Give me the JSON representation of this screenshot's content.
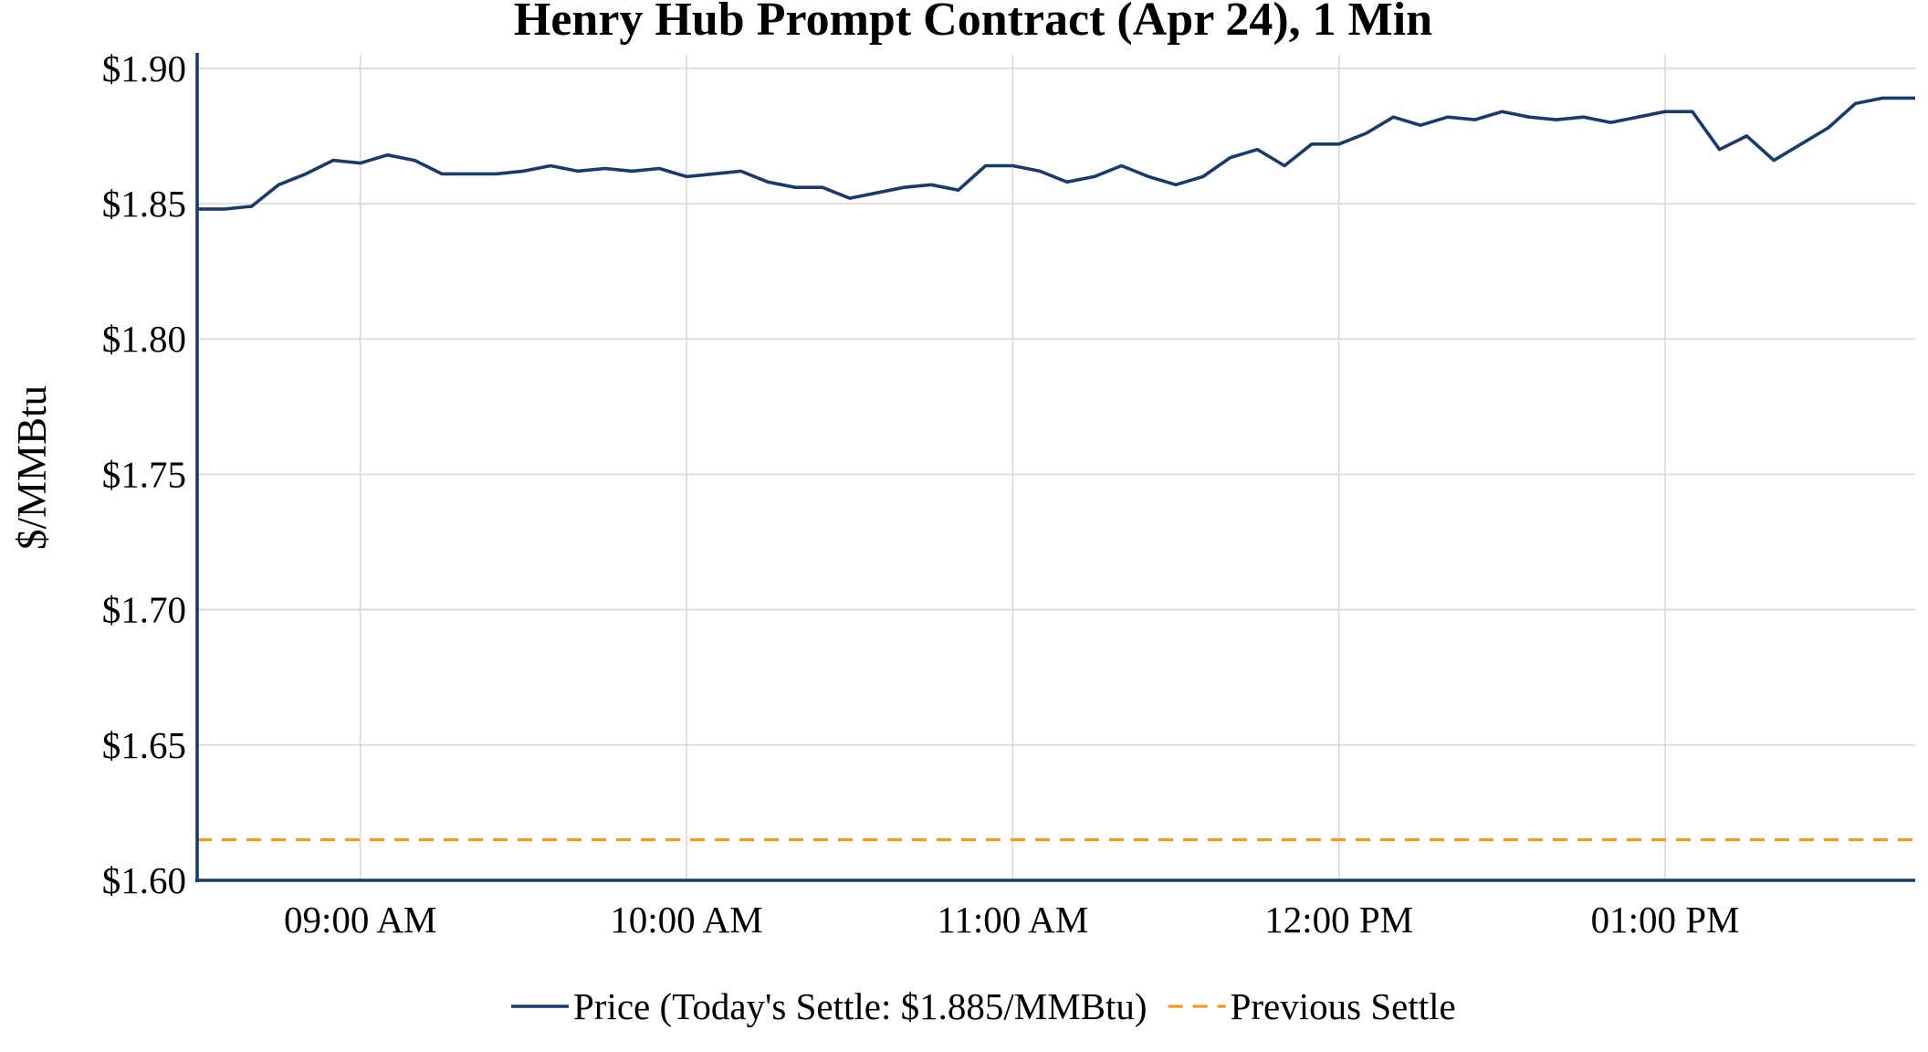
{
  "chart_data": {
    "type": "line",
    "title": "Henry Hub Prompt Contract (Apr 24), 1 Min",
    "xlabel": "",
    "ylabel": "$/MMBtu",
    "ylim": [
      1.6,
      1.905
    ],
    "xlim": [
      "08:30",
      "13:46"
    ],
    "yticks": [
      1.6,
      1.65,
      1.7,
      1.75,
      1.8,
      1.85,
      1.9
    ],
    "ytick_labels": [
      "$1.60",
      "$1.65",
      "$1.70",
      "$1.75",
      "$1.80",
      "$1.85",
      "$1.90"
    ],
    "xticks": [
      "09:00",
      "10:00",
      "11:00",
      "12:00",
      "13:00"
    ],
    "xtick_labels": [
      "09:00 AM",
      "10:00 AM",
      "11:00 AM",
      "12:00 PM",
      "01:00 PM"
    ],
    "grid": true,
    "legend_position": "bottom",
    "series": [
      {
        "name": "Price (Today's Settle: $1.885/MMBtu)",
        "color": "#1a3a6b",
        "style": "solid",
        "points": [
          [
            "08:30",
            1.848
          ],
          [
            "08:35",
            1.848
          ],
          [
            "08:40",
            1.849
          ],
          [
            "08:45",
            1.857
          ],
          [
            "08:50",
            1.861
          ],
          [
            "08:55",
            1.866
          ],
          [
            "09:00",
            1.865
          ],
          [
            "09:05",
            1.868
          ],
          [
            "09:10",
            1.866
          ],
          [
            "09:15",
            1.861
          ],
          [
            "09:20",
            1.861
          ],
          [
            "09:25",
            1.861
          ],
          [
            "09:30",
            1.862
          ],
          [
            "09:35",
            1.864
          ],
          [
            "09:40",
            1.862
          ],
          [
            "09:45",
            1.863
          ],
          [
            "09:50",
            1.862
          ],
          [
            "09:55",
            1.863
          ],
          [
            "10:00",
            1.86
          ],
          [
            "10:05",
            1.861
          ],
          [
            "10:10",
            1.862
          ],
          [
            "10:15",
            1.858
          ],
          [
            "10:20",
            1.856
          ],
          [
            "10:25",
            1.856
          ],
          [
            "10:30",
            1.852
          ],
          [
            "10:35",
            1.854
          ],
          [
            "10:40",
            1.856
          ],
          [
            "10:45",
            1.857
          ],
          [
            "10:50",
            1.855
          ],
          [
            "10:55",
            1.864
          ],
          [
            "11:00",
            1.864
          ],
          [
            "11:05",
            1.862
          ],
          [
            "11:10",
            1.858
          ],
          [
            "11:15",
            1.86
          ],
          [
            "11:20",
            1.864
          ],
          [
            "11:25",
            1.86
          ],
          [
            "11:30",
            1.857
          ],
          [
            "11:35",
            1.86
          ],
          [
            "11:40",
            1.867
          ],
          [
            "11:45",
            1.87
          ],
          [
            "11:50",
            1.864
          ],
          [
            "11:55",
            1.872
          ],
          [
            "12:00",
            1.872
          ],
          [
            "12:05",
            1.876
          ],
          [
            "12:10",
            1.882
          ],
          [
            "12:15",
            1.879
          ],
          [
            "12:20",
            1.882
          ],
          [
            "12:25",
            1.881
          ],
          [
            "12:30",
            1.884
          ],
          [
            "12:35",
            1.882
          ],
          [
            "12:40",
            1.881
          ],
          [
            "12:45",
            1.882
          ],
          [
            "12:50",
            1.88
          ],
          [
            "12:55",
            1.882
          ],
          [
            "13:00",
            1.884
          ],
          [
            "13:05",
            1.884
          ],
          [
            "13:10",
            1.87
          ],
          [
            "13:15",
            1.875
          ],
          [
            "13:20",
            1.866
          ],
          [
            "13:25",
            1.872
          ],
          [
            "13:30",
            1.878
          ],
          [
            "13:35",
            1.887
          ],
          [
            "13:40",
            1.889
          ],
          [
            "13:46",
            1.889
          ]
        ]
      },
      {
        "name": "Previous Settle",
        "color": "#f59b1c",
        "style": "dashed",
        "points": [
          [
            "08:30",
            1.615
          ],
          [
            "13:46",
            1.615
          ]
        ]
      }
    ]
  }
}
